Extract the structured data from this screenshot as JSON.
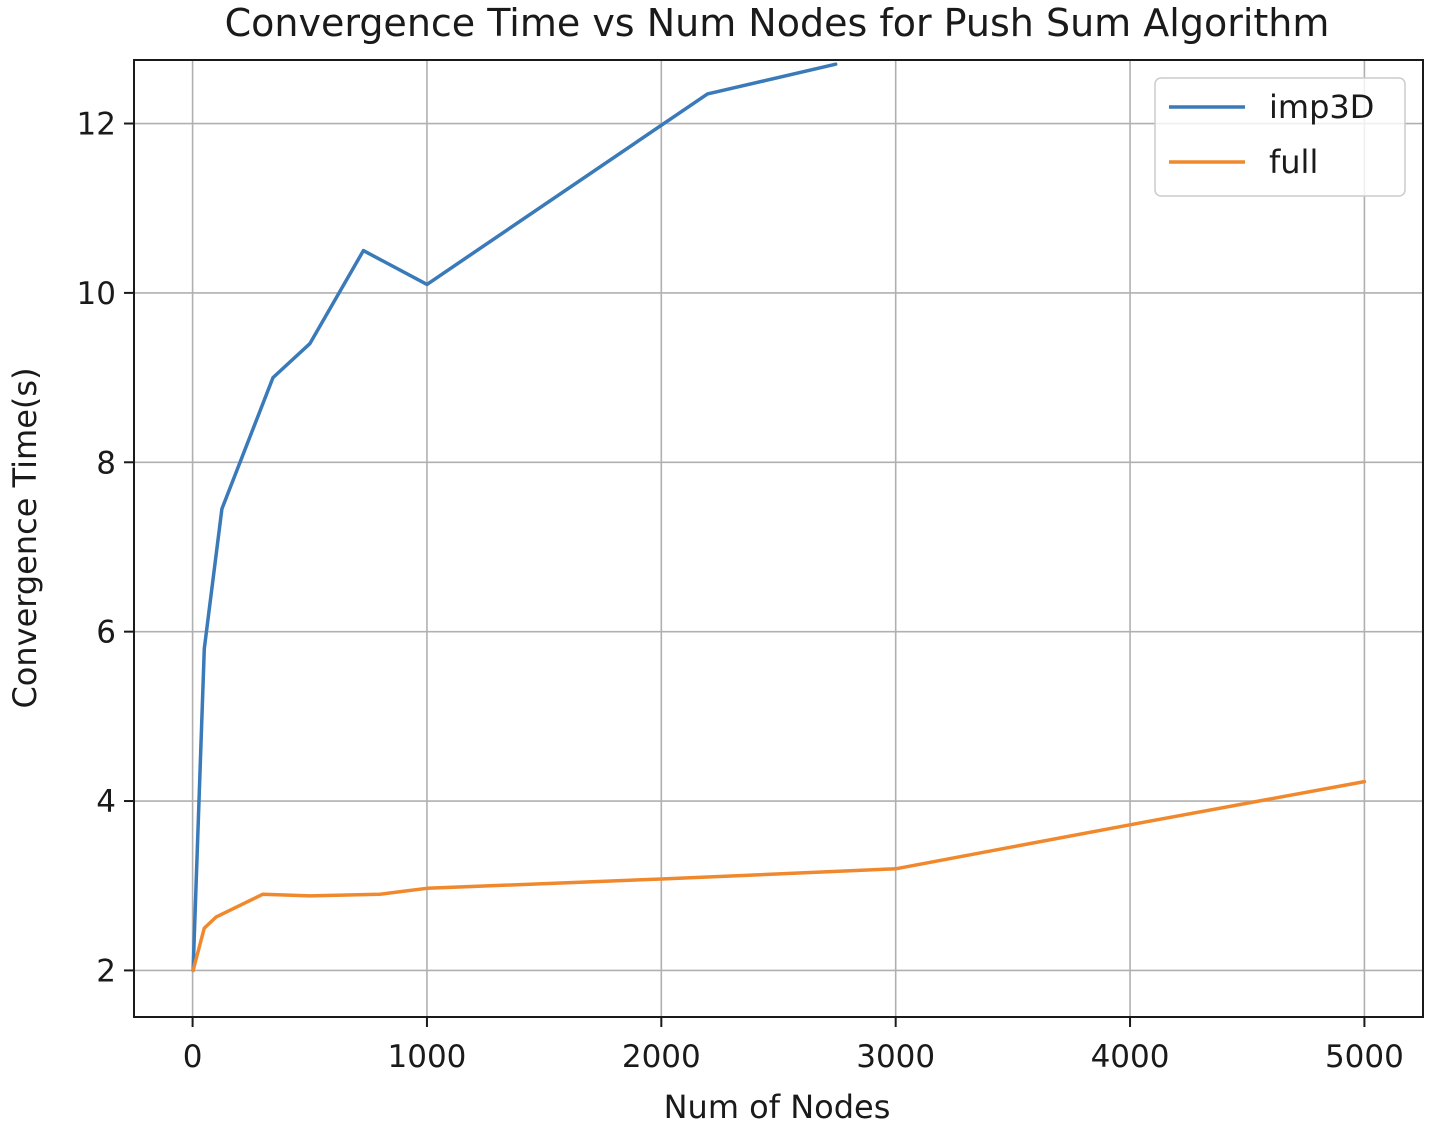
{
  "chart_data": {
    "type": "line",
    "title": "Convergence Time vs Num Nodes for Push Sum Algorithm",
    "xlabel": "Num of Nodes",
    "ylabel": "Convergence Time(s)",
    "xlim": [
      -250,
      5250
    ],
    "ylim": [
      1.45,
      12.75
    ],
    "xticks": [
      0,
      1000,
      2000,
      3000,
      4000,
      5000
    ],
    "yticks": [
      2,
      4,
      6,
      8,
      10,
      12
    ],
    "xtick_labels": [
      "0",
      "1000",
      "2000",
      "3000",
      "4000",
      "5000"
    ],
    "ytick_labels": [
      "2",
      "4",
      "6",
      "8",
      "10",
      "12"
    ],
    "grid": true,
    "legend_position": "top-right",
    "series": [
      {
        "name": "imp3D",
        "color": "#3a7ab9",
        "x": [
          2,
          50,
          125,
          343,
          500,
          729,
          1000,
          2197,
          2744
        ],
        "y": [
          2.0,
          5.8,
          7.45,
          9.0,
          9.4,
          10.5,
          10.1,
          12.35,
          12.7
        ]
      },
      {
        "name": "full",
        "color": "#f0892d",
        "x": [
          2,
          50,
          100,
          300,
          500,
          800,
          1000,
          2000,
          3000,
          4000,
          5000
        ],
        "y": [
          2.0,
          2.5,
          2.63,
          2.9,
          2.88,
          2.9,
          2.97,
          3.08,
          3.2,
          3.72,
          4.23
        ]
      }
    ]
  }
}
